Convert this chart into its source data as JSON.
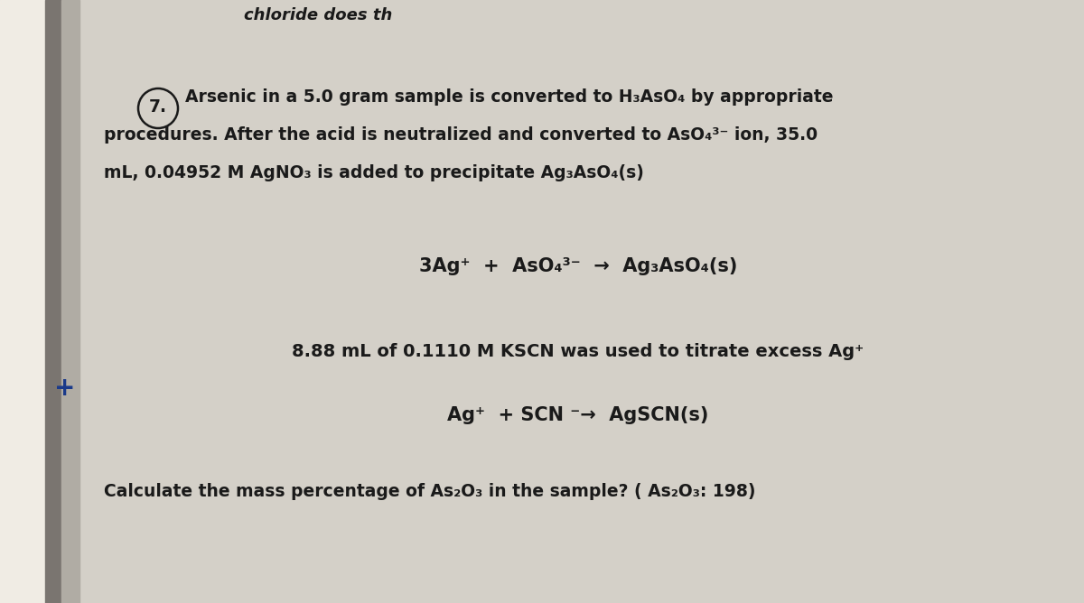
{
  "bg_color_left": "#c8c4bc",
  "bg_color_page": "#d2cfc8",
  "binding_color": "#6a6560",
  "binding_shadow": "#9a9590",
  "text_color": "#1a1a1a",
  "top_line": "chloride does th",
  "line1": "Arsenic in a 5.0 gram sample is converted to H₃AsO₄ by appropriate",
  "line2": "procedures. After the acid is neutralized and converted to AsO₄³⁻ ion, 35.0",
  "line3": "mL, 0.04952 M AgNO₃ is added to precipitate Ag₃AsO₄(s)",
  "eq1": "3Ag⁺  +  AsO₄³⁻  →  Ag₃AsO₄(s)",
  "line4": "8.88 mL of 0.1110 M KSCN was used to titrate excess Ag⁺",
  "eq2": "Ag⁺  + SCN ⁻→  AgSCN(s)",
  "line5": "Calculate the mass percentage of As₂O₃ in the sample? ( As₂O₃: 198)",
  "num_label": "7.",
  "figsize": [
    12.0,
    6.68
  ],
  "dpi": 100
}
